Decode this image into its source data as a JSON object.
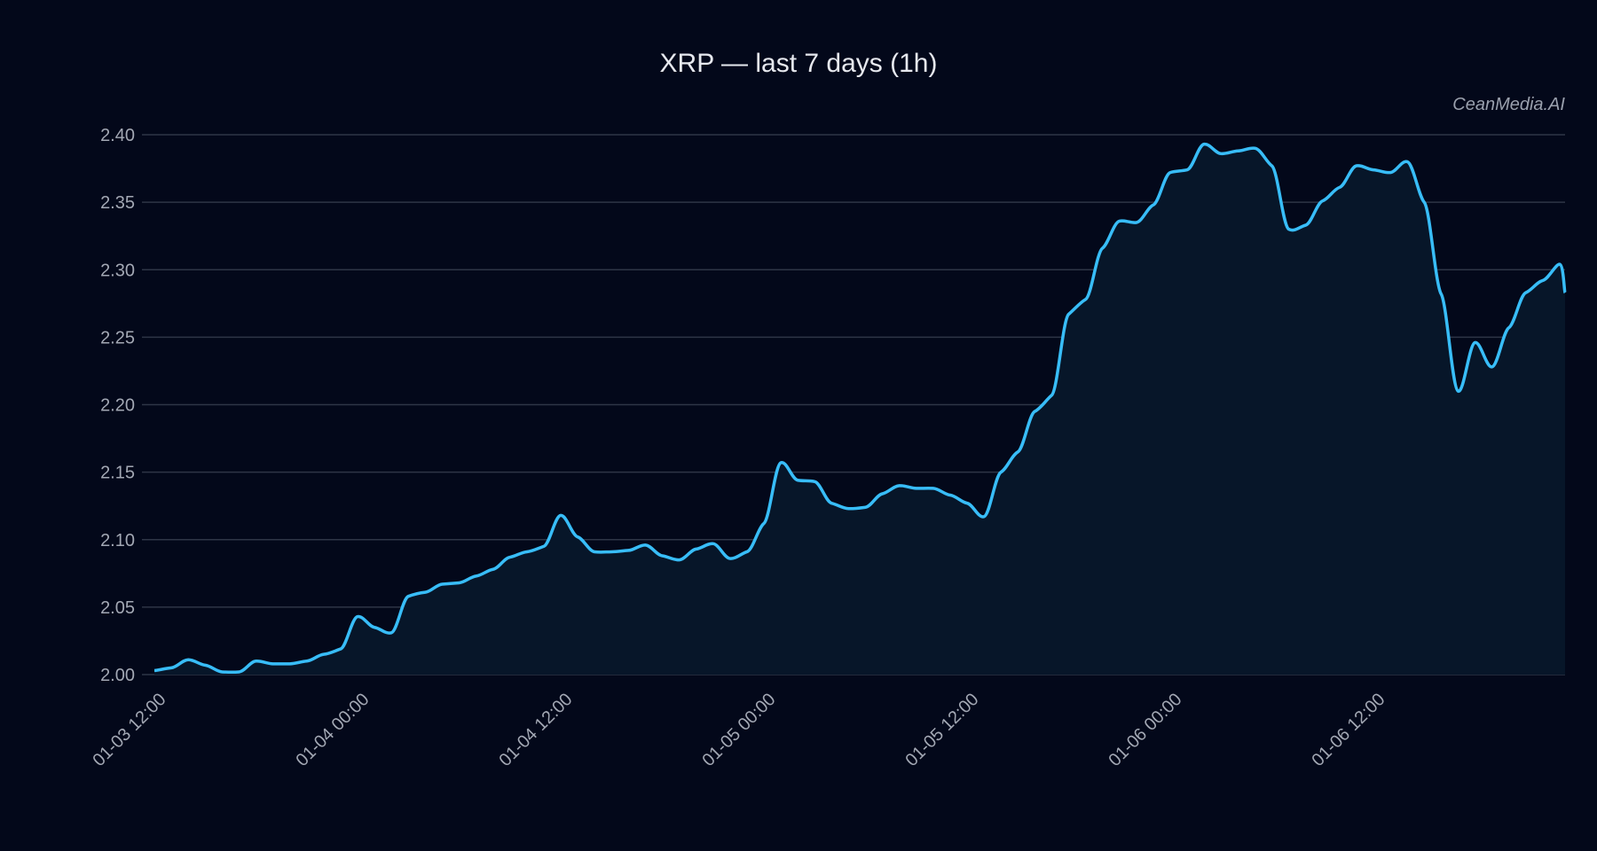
{
  "title": "XRP — last 7 days (1h)",
  "watermark": "CeanMedia.AI",
  "colors": {
    "background": "#03081a",
    "line": "#38bdf8",
    "fill": "#071629",
    "grid": "#2e3546",
    "tick_text": "#a3a8b4"
  },
  "chart_data": {
    "type": "area",
    "title": "XRP — last 7 days (1h)",
    "xlabel": "",
    "ylabel": "",
    "ylim": [
      2.0,
      2.4
    ],
    "yticks": [
      "2.00",
      "2.05",
      "2.10",
      "2.15",
      "2.20",
      "2.25",
      "2.30",
      "2.35",
      "2.40"
    ],
    "xticks": [
      "01-03 12:00",
      "01-04 00:00",
      "01-04 12:00",
      "01-05 00:00",
      "01-05 12:00",
      "01-06 00:00",
      "01-06 12:00"
    ],
    "grid": true,
    "legend": "none",
    "x_start": "01-03 12:00",
    "interval": "1h",
    "series": [
      {
        "name": "XRP",
        "values": [
          2.003,
          2.005,
          2.011,
          2.007,
          2.002,
          2.002,
          2.01,
          2.008,
          2.008,
          2.01,
          2.015,
          2.019,
          2.043,
          2.035,
          2.031,
          2.058,
          2.061,
          2.067,
          2.068,
          2.073,
          2.078,
          2.087,
          2.091,
          2.095,
          2.118,
          2.102,
          2.091,
          2.091,
          2.092,
          2.096,
          2.088,
          2.085,
          2.093,
          2.097,
          2.086,
          2.091,
          2.112,
          2.157,
          2.144,
          2.143,
          2.127,
          2.123,
          2.124,
          2.134,
          2.14,
          2.138,
          2.138,
          2.133,
          2.127,
          2.117,
          2.15,
          2.165,
          2.195,
          2.207,
          2.267,
          2.278,
          2.316,
          2.336,
          2.335,
          2.348,
          2.372,
          2.374,
          2.393,
          2.386,
          2.388,
          2.39,
          2.377,
          2.33,
          2.333,
          2.351,
          2.361,
          2.377,
          2.374,
          2.372,
          2.38,
          2.35,
          2.282,
          2.21,
          2.246,
          2.228,
          2.257,
          2.283,
          2.292,
          2.304,
          2.283
        ]
      }
    ]
  }
}
